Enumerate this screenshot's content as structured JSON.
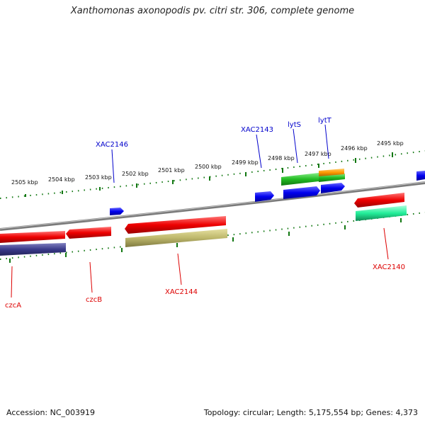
{
  "title": "Xanthomonas axonopodis pv. citri str. 306, complete genome",
  "footer": {
    "accession": "Accession: NC_003919",
    "summary": "Topology: circular; Length: 5,175,554 bp; Genes: 4,373"
  },
  "ruler_labels": [
    "2505 kbp",
    "2504 kbp",
    "2503 kbp",
    "2502 kbp",
    "2501 kbp",
    "2500 kbp",
    "2499 kbp",
    "2498 kbp",
    "2497 kbp",
    "2496 kbp",
    "2495 kbp"
  ],
  "gene_labels": {
    "XAC2146": "XAC2146",
    "XAC2143": "XAC2143",
    "lytS": "lytS",
    "lytT": "lytT",
    "czcA": "czcA",
    "czcB": "czcB",
    "XAC2144": "XAC2144",
    "XAC2140": "XAC2140"
  },
  "colors": {
    "forward_label": "#0000cc",
    "reverse_label": "#dd0000",
    "ruler": "#117711",
    "backbone": "#888888"
  }
}
